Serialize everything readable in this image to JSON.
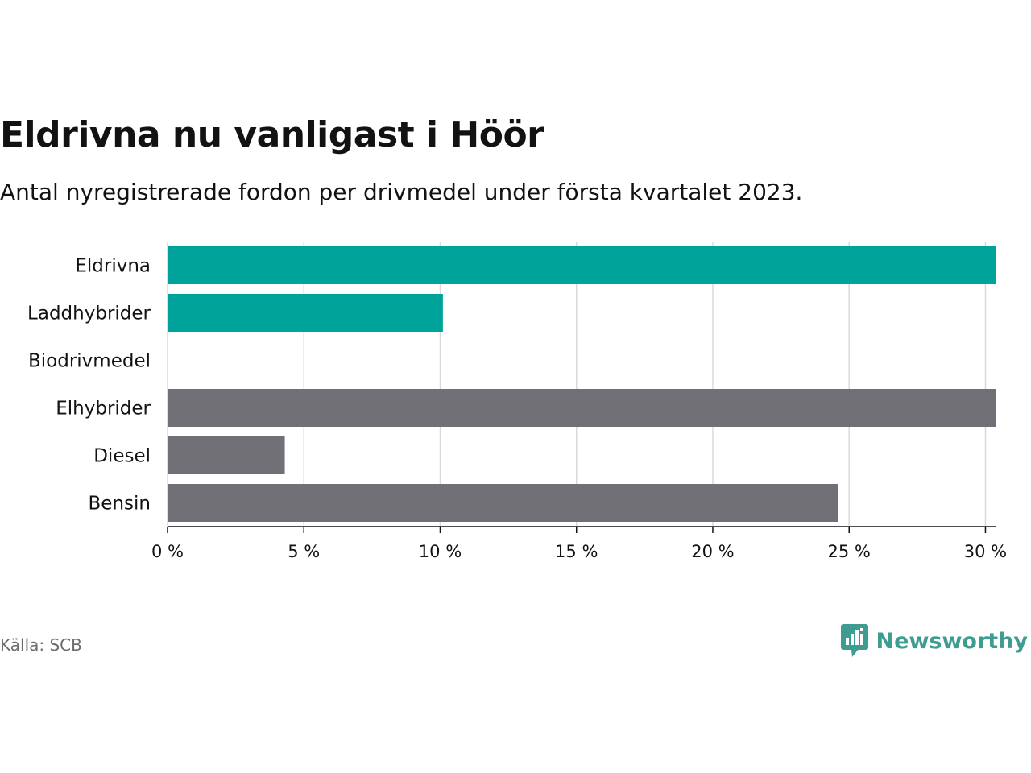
{
  "title": "Eldrivna nu vanligast i Höör",
  "subtitle": "Antal nyregistrerade fordon per drivmedel under första kvartalet 2023.",
  "source": "Källa: SCB",
  "brand": {
    "name": "Newsworthy",
    "logo_icon": "bar-chart-speech-bubble-icon"
  },
  "colors": {
    "highlight": "#00a39a",
    "other": "#707076",
    "grid": "#d9d9d9",
    "axis": "#121212"
  },
  "chart_data": {
    "type": "bar",
    "orientation": "horizontal",
    "categories": [
      "Eldrivna",
      "Laddhybrider",
      "Biodrivmedel",
      "Elhybrider",
      "Diesel",
      "Bensin"
    ],
    "values": [
      30.4,
      10.1,
      0,
      30.4,
      4.3,
      24.6
    ],
    "highlighted": [
      true,
      true,
      true,
      false,
      false,
      false
    ],
    "unit": "%",
    "xlim": [
      0,
      30.4
    ],
    "xticks": [
      0,
      5,
      10,
      15,
      20,
      25,
      30
    ],
    "xtick_labels": [
      "0 %",
      "5 %",
      "10 %",
      "15 %",
      "20 %",
      "25 %",
      "30 %"
    ],
    "grid": true
  }
}
